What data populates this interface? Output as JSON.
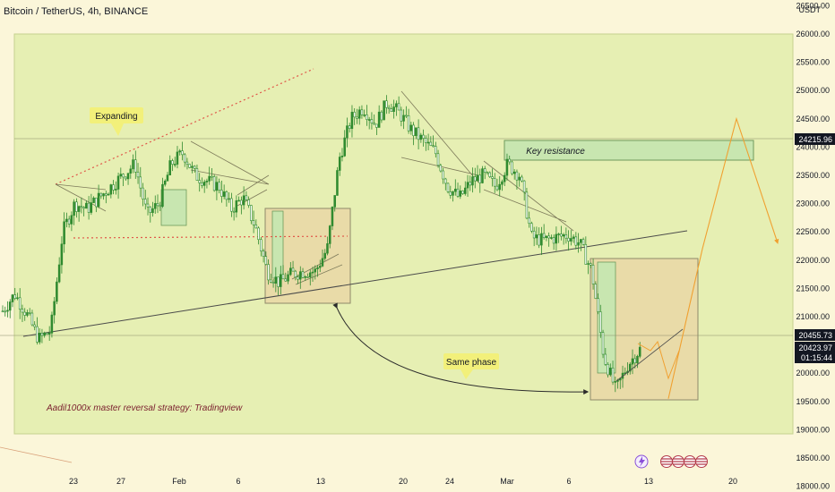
{
  "header": {
    "symbol": "Bitcoin / TetherUS, 4h, BINANCE",
    "unit": "USDT"
  },
  "colors": {
    "background": "#fbf6d9",
    "panel": "#e6efb3",
    "candle": "#2f8a2f",
    "key_resistance_box": "#c8e6b0",
    "phase_box": "#e9dba8",
    "trend_line": "#4a4a4a",
    "dotted_red": "#e0584a",
    "projection": "#f0a030",
    "price_tag": "#131722",
    "callout": "#f2f07a",
    "brand_text": "#7a1f2e"
  },
  "annotations": {
    "expanding": "Expanding",
    "key_resistance": "Key resistance",
    "same_phase": "Same phase",
    "strategy_note": "Aadil1000x master reversal strategy: Tradingview"
  },
  "price_tags": {
    "resistance": "24215.96",
    "last_price": "20455.73",
    "current_price": "20423.97",
    "countdown": "01:15:44"
  },
  "chart_data": {
    "type": "candlestick",
    "title": "Bitcoin / TetherUS, 4h, BINANCE",
    "ylim": [
      17900,
      26600
    ],
    "y_ticks": [
      "26500.00",
      "26000.00",
      "25500.00",
      "25000.00",
      "24500.00",
      "24000.00",
      "23500.00",
      "23000.00",
      "22500.00",
      "22000.00",
      "21500.00",
      "21000.00",
      "20500.00",
      "20000.00",
      "19500.00",
      "19000.00",
      "18500.00",
      "18000.00"
    ],
    "x_ticks": [
      "23",
      "27",
      "Feb",
      "6",
      "13",
      "20",
      "24",
      "Mar",
      "6",
      "13",
      "20"
    ],
    "price_path": [
      [
        "20",
        21100
      ],
      [
        "21",
        21400
      ],
      [
        "21.5",
        21050
      ],
      [
        "22",
        20600
      ],
      [
        "22.5",
        20750
      ],
      [
        "23",
        22500
      ],
      [
        "24",
        23000
      ],
      [
        "25",
        22900
      ],
      [
        "26",
        23100
      ],
      [
        "27",
        23300
      ],
      [
        "28",
        23500
      ],
      [
        "29",
        23700
      ],
      [
        "30",
        22800
      ],
      [
        "31",
        23000
      ],
      [
        "Feb 1",
        23700
      ],
      [
        "2",
        23900
      ],
      [
        "3",
        23500
      ],
      [
        "4",
        23400
      ],
      [
        "5",
        23300
      ],
      [
        "6",
        22900
      ],
      [
        "7",
        23100
      ],
      [
        "8",
        22600
      ],
      [
        "9",
        21800
      ],
      [
        "10",
        21600
      ],
      [
        "11",
        21750
      ],
      [
        "12",
        21800
      ],
      [
        "13",
        21800
      ],
      [
        "14",
        22200
      ],
      [
        "15",
        23800
      ],
      [
        "16",
        24500
      ],
      [
        "17",
        24700
      ],
      [
        "18",
        24400
      ],
      [
        "19",
        24800
      ],
      [
        "20",
        24600
      ],
      [
        "21",
        24300
      ],
      [
        "22",
        24100
      ],
      [
        "23",
        23900
      ],
      [
        "24",
        23300
      ],
      [
        "25",
        23100
      ],
      [
        "26",
        23400
      ],
      [
        "27",
        23500
      ],
      [
        "28",
        23300
      ],
      [
        "Mar 1",
        23700
      ],
      [
        "2",
        23500
      ],
      [
        "3",
        22400
      ],
      [
        "4",
        22350
      ],
      [
        "5",
        22400
      ],
      [
        "6",
        22450
      ],
      [
        "7",
        22300
      ],
      [
        "8",
        21800
      ],
      [
        "9",
        20300
      ],
      [
        "10",
        19700
      ],
      [
        "11",
        20150
      ],
      [
        "12",
        20420
      ]
    ],
    "lines": [
      {
        "kind": "support trendline",
        "from": [
          "22.5",
          20400
        ],
        "to": [
          "Mar 16",
          22400
        ]
      },
      {
        "kind": "expanding upper (dotted)",
        "from": [
          "24",
          23400
        ],
        "to": [
          "13",
          25500
        ]
      },
      {
        "kind": "expanding lower (dotted)",
        "from": [
          "24",
          22300
        ],
        "to": [
          "13",
          22300
        ]
      }
    ],
    "zones": [
      {
        "label": "Key resistance",
        "y_range": [
          23850,
          24250
        ],
        "x_range": [
          "Feb 28",
          "Mar 17"
        ]
      },
      {
        "label": "Same phase",
        "y_range": [
          21050,
          23200
        ],
        "x_range": [
          "Feb 8",
          "Feb 14"
        ]
      },
      {
        "label": "Same phase",
        "y_range": [
          19250,
          21950
        ],
        "x_range": [
          "Mar 8",
          "Mar 16"
        ]
      }
    ],
    "projection": [
      [
        "Mar 13",
        19550
      ],
      [
        "Mar 16",
        22200
      ],
      [
        "Mar 19",
        24500
      ],
      [
        "Mar 21",
        22300
      ]
    ],
    "grid": false,
    "legend": "none"
  }
}
